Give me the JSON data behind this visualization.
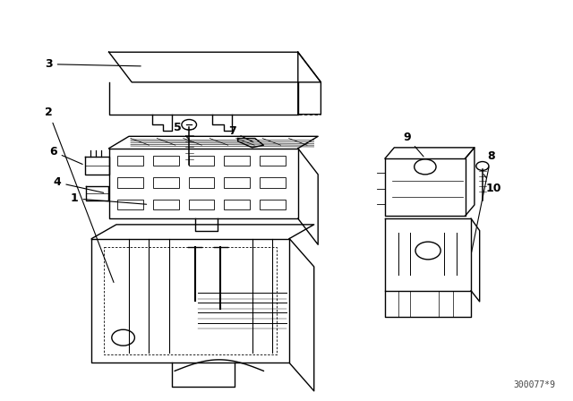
{
  "bg_color": "#ffffff",
  "line_color": "#000000",
  "part_labels": [
    "1",
    "2",
    "3",
    "4",
    "5",
    "6",
    "7",
    "8",
    "9",
    "10"
  ],
  "watermark": "300077*9",
  "fig_width": 6.4,
  "fig_height": 4.48,
  "dpi": 100
}
